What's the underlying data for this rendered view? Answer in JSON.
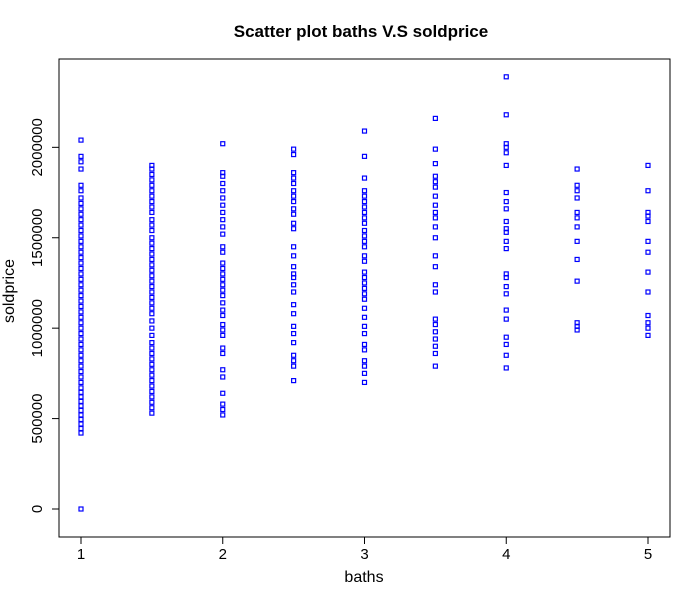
{
  "chart_data": {
    "type": "scatter",
    "title": "Scatter plot baths V.S soldprice",
    "xlabel": "baths",
    "ylabel": "soldprice",
    "xlim": [
      1,
      5
    ],
    "ylim": [
      0,
      2400000
    ],
    "x_ticks": [
      "1",
      "2",
      "3",
      "4",
      "5"
    ],
    "y_ticks": [
      "0",
      "500000",
      "1000000",
      "1500000",
      "2000000"
    ],
    "grid": false,
    "marker": "open-square",
    "color": "#0000ff",
    "series": [
      {
        "points": [
          [
            1,
            0
          ],
          [
            1,
            420000
          ],
          [
            1,
            445000
          ],
          [
            1,
            470000
          ],
          [
            1,
            495000
          ],
          [
            1,
            520000
          ],
          [
            1,
            545000
          ],
          [
            1,
            570000
          ],
          [
            1,
            595000
          ],
          [
            1,
            620000
          ],
          [
            1,
            645000
          ],
          [
            1,
            670000
          ],
          [
            1,
            700000
          ],
          [
            1,
            730000
          ],
          [
            1,
            760000
          ],
          [
            1,
            790000
          ],
          [
            1,
            820000
          ],
          [
            1,
            850000
          ],
          [
            1,
            880000
          ],
          [
            1,
            910000
          ],
          [
            1,
            940000
          ],
          [
            1,
            970000
          ],
          [
            1,
            1000000
          ],
          [
            1,
            1030000
          ],
          [
            1,
            1060000
          ],
          [
            1,
            1090000
          ],
          [
            1,
            1120000
          ],
          [
            1,
            1150000
          ],
          [
            1,
            1180000
          ],
          [
            1,
            1210000
          ],
          [
            1,
            1240000
          ],
          [
            1,
            1270000
          ],
          [
            1,
            1300000
          ],
          [
            1,
            1330000
          ],
          [
            1,
            1360000
          ],
          [
            1,
            1390000
          ],
          [
            1,
            1420000
          ],
          [
            1,
            1450000
          ],
          [
            1,
            1480000
          ],
          [
            1,
            1510000
          ],
          [
            1,
            1540000
          ],
          [
            1,
            1570000
          ],
          [
            1,
            1600000
          ],
          [
            1,
            1630000
          ],
          [
            1,
            1660000
          ],
          [
            1,
            1690000
          ],
          [
            1,
            1720000
          ],
          [
            1,
            1760000
          ],
          [
            1,
            1790000
          ],
          [
            1,
            1880000
          ],
          [
            1,
            1920000
          ],
          [
            1,
            1950000
          ],
          [
            1,
            2040000
          ],
          [
            1.5,
            530000
          ],
          [
            1.5,
            560000
          ],
          [
            1.5,
            590000
          ],
          [
            1.5,
            620000
          ],
          [
            1.5,
            650000
          ],
          [
            1.5,
            680000
          ],
          [
            1.5,
            710000
          ],
          [
            1.5,
            740000
          ],
          [
            1.5,
            770000
          ],
          [
            1.5,
            800000
          ],
          [
            1.5,
            830000
          ],
          [
            1.5,
            860000
          ],
          [
            1.5,
            890000
          ],
          [
            1.5,
            920000
          ],
          [
            1.5,
            960000
          ],
          [
            1.5,
            1000000
          ],
          [
            1.5,
            1040000
          ],
          [
            1.5,
            1080000
          ],
          [
            1.5,
            1110000
          ],
          [
            1.5,
            1140000
          ],
          [
            1.5,
            1170000
          ],
          [
            1.5,
            1200000
          ],
          [
            1.5,
            1230000
          ],
          [
            1.5,
            1260000
          ],
          [
            1.5,
            1290000
          ],
          [
            1.5,
            1320000
          ],
          [
            1.5,
            1350000
          ],
          [
            1.5,
            1380000
          ],
          [
            1.5,
            1410000
          ],
          [
            1.5,
            1440000
          ],
          [
            1.5,
            1470000
          ],
          [
            1.5,
            1500000
          ],
          [
            1.5,
            1540000
          ],
          [
            1.5,
            1570000
          ],
          [
            1.5,
            1600000
          ],
          [
            1.5,
            1640000
          ],
          [
            1.5,
            1670000
          ],
          [
            1.5,
            1700000
          ],
          [
            1.5,
            1730000
          ],
          [
            1.5,
            1760000
          ],
          [
            1.5,
            1790000
          ],
          [
            1.5,
            1820000
          ],
          [
            1.5,
            1850000
          ],
          [
            1.5,
            1880000
          ],
          [
            1.5,
            1900000
          ],
          [
            2,
            520000
          ],
          [
            2,
            550000
          ],
          [
            2,
            580000
          ],
          [
            2,
            640000
          ],
          [
            2,
            730000
          ],
          [
            2,
            770000
          ],
          [
            2,
            860000
          ],
          [
            2,
            890000
          ],
          [
            2,
            960000
          ],
          [
            2,
            990000
          ],
          [
            2,
            1020000
          ],
          [
            2,
            1070000
          ],
          [
            2,
            1100000
          ],
          [
            2,
            1140000
          ],
          [
            2,
            1180000
          ],
          [
            2,
            1210000
          ],
          [
            2,
            1240000
          ],
          [
            2,
            1270000
          ],
          [
            2,
            1300000
          ],
          [
            2,
            1330000
          ],
          [
            2,
            1360000
          ],
          [
            2,
            1420000
          ],
          [
            2,
            1450000
          ],
          [
            2,
            1520000
          ],
          [
            2,
            1560000
          ],
          [
            2,
            1600000
          ],
          [
            2,
            1640000
          ],
          [
            2,
            1680000
          ],
          [
            2,
            1720000
          ],
          [
            2,
            1760000
          ],
          [
            2,
            1800000
          ],
          [
            2,
            1840000
          ],
          [
            2,
            1860000
          ],
          [
            2,
            2020000
          ],
          [
            2.5,
            710000
          ],
          [
            2.5,
            790000
          ],
          [
            2.5,
            820000
          ],
          [
            2.5,
            850000
          ],
          [
            2.5,
            920000
          ],
          [
            2.5,
            970000
          ],
          [
            2.5,
            1010000
          ],
          [
            2.5,
            1080000
          ],
          [
            2.5,
            1130000
          ],
          [
            2.5,
            1200000
          ],
          [
            2.5,
            1240000
          ],
          [
            2.5,
            1280000
          ],
          [
            2.5,
            1300000
          ],
          [
            2.5,
            1340000
          ],
          [
            2.5,
            1400000
          ],
          [
            2.5,
            1450000
          ],
          [
            2.5,
            1550000
          ],
          [
            2.5,
            1580000
          ],
          [
            2.5,
            1630000
          ],
          [
            2.5,
            1660000
          ],
          [
            2.5,
            1700000
          ],
          [
            2.5,
            1730000
          ],
          [
            2.5,
            1760000
          ],
          [
            2.5,
            1800000
          ],
          [
            2.5,
            1830000
          ],
          [
            2.5,
            1860000
          ],
          [
            2.5,
            1960000
          ],
          [
            2.5,
            1990000
          ],
          [
            3,
            700000
          ],
          [
            3,
            750000
          ],
          [
            3,
            790000
          ],
          [
            3,
            820000
          ],
          [
            3,
            880000
          ],
          [
            3,
            910000
          ],
          [
            3,
            970000
          ],
          [
            3,
            1010000
          ],
          [
            3,
            1060000
          ],
          [
            3,
            1110000
          ],
          [
            3,
            1160000
          ],
          [
            3,
            1190000
          ],
          [
            3,
            1220000
          ],
          [
            3,
            1250000
          ],
          [
            3,
            1280000
          ],
          [
            3,
            1310000
          ],
          [
            3,
            1370000
          ],
          [
            3,
            1400000
          ],
          [
            3,
            1450000
          ],
          [
            3,
            1480000
          ],
          [
            3,
            1510000
          ],
          [
            3,
            1540000
          ],
          [
            3,
            1580000
          ],
          [
            3,
            1610000
          ],
          [
            3,
            1640000
          ],
          [
            3,
            1670000
          ],
          [
            3,
            1700000
          ],
          [
            3,
            1730000
          ],
          [
            3,
            1760000
          ],
          [
            3,
            1830000
          ],
          [
            3,
            1950000
          ],
          [
            3,
            2090000
          ],
          [
            3.5,
            790000
          ],
          [
            3.5,
            860000
          ],
          [
            3.5,
            900000
          ],
          [
            3.5,
            940000
          ],
          [
            3.5,
            980000
          ],
          [
            3.5,
            1020000
          ],
          [
            3.5,
            1050000
          ],
          [
            3.5,
            1200000
          ],
          [
            3.5,
            1240000
          ],
          [
            3.5,
            1340000
          ],
          [
            3.5,
            1400000
          ],
          [
            3.5,
            1500000
          ],
          [
            3.5,
            1560000
          ],
          [
            3.5,
            1610000
          ],
          [
            3.5,
            1640000
          ],
          [
            3.5,
            1680000
          ],
          [
            3.5,
            1730000
          ],
          [
            3.5,
            1780000
          ],
          [
            3.5,
            1810000
          ],
          [
            3.5,
            1840000
          ],
          [
            3.5,
            1910000
          ],
          [
            3.5,
            1990000
          ],
          [
            3.5,
            2160000
          ],
          [
            4,
            780000
          ],
          [
            4,
            850000
          ],
          [
            4,
            910000
          ],
          [
            4,
            950000
          ],
          [
            4,
            1050000
          ],
          [
            4,
            1100000
          ],
          [
            4,
            1190000
          ],
          [
            4,
            1230000
          ],
          [
            4,
            1280000
          ],
          [
            4,
            1300000
          ],
          [
            4,
            1440000
          ],
          [
            4,
            1480000
          ],
          [
            4,
            1530000
          ],
          [
            4,
            1550000
          ],
          [
            4,
            1590000
          ],
          [
            4,
            1660000
          ],
          [
            4,
            1700000
          ],
          [
            4,
            1750000
          ],
          [
            4,
            1900000
          ],
          [
            4,
            1970000
          ],
          [
            4,
            2000000
          ],
          [
            4,
            2020000
          ],
          [
            4,
            2180000
          ],
          [
            4,
            2390000
          ],
          [
            4.5,
            990000
          ],
          [
            4.5,
            1010000
          ],
          [
            4.5,
            1030000
          ],
          [
            4.5,
            1260000
          ],
          [
            4.5,
            1380000
          ],
          [
            4.5,
            1480000
          ],
          [
            4.5,
            1560000
          ],
          [
            4.5,
            1610000
          ],
          [
            4.5,
            1640000
          ],
          [
            4.5,
            1720000
          ],
          [
            4.5,
            1760000
          ],
          [
            4.5,
            1790000
          ],
          [
            4.5,
            1880000
          ],
          [
            5,
            960000
          ],
          [
            5,
            1000000
          ],
          [
            5,
            1030000
          ],
          [
            5,
            1070000
          ],
          [
            5,
            1200000
          ],
          [
            5,
            1310000
          ],
          [
            5,
            1420000
          ],
          [
            5,
            1480000
          ],
          [
            5,
            1590000
          ],
          [
            5,
            1620000
          ],
          [
            5,
            1640000
          ],
          [
            5,
            1760000
          ],
          [
            5,
            1900000
          ]
        ]
      }
    ]
  }
}
